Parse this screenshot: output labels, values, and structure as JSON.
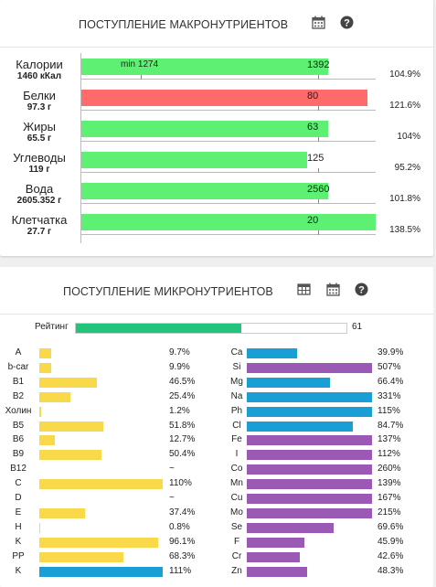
{
  "macro": {
    "title": "ПОСТУПЛЕНИЕ МАКРОНУТРИЕНТОВ",
    "icons": [
      "calendar-icon",
      "help-icon"
    ],
    "min_label": "min 1274",
    "rows": [
      {
        "label": "Калории",
        "value": "1460 кКал",
        "num": "1392",
        "pct": "104.9%",
        "fill": 0.839,
        "color": "#5ef072"
      },
      {
        "label": "Белки",
        "value": "97.3 г",
        "num": "80",
        "pct": "121.6%",
        "fill": 0.973,
        "color": "#ff6b6b"
      },
      {
        "label": "Жиры",
        "value": "65.5 г",
        "num": "63",
        "pct": "104%",
        "fill": 0.839,
        "color": "#5ef072"
      },
      {
        "label": "Углеводы",
        "value": "119 г",
        "num": "125",
        "pct": "95.2%",
        "fill": 0.767,
        "color": "#5ef072"
      },
      {
        "label": "Вода",
        "value": "2605.352 г",
        "num": "2560",
        "pct": "101.8%",
        "fill": 0.839,
        "color": "#5ef072"
      },
      {
        "label": "Клетчатка",
        "value": "27.7 г",
        "num": "20",
        "pct": "138.5%",
        "fill": 1.0,
        "color": "#5ef072"
      }
    ]
  },
  "micro": {
    "title": "ПОСТУПЛЕНИЕ МИКРОНУТРИЕНТОВ",
    "icons": [
      "table-icon",
      "calendar-icon",
      "help-icon"
    ],
    "rating_label": "Рейтинг",
    "rating_value": "61",
    "rating_fill": 0.61,
    "colors": {
      "yellow": "#f9d949",
      "blue": "#1a9ed6",
      "purple": "#9b59b6",
      "green": "#22c47b"
    },
    "left": [
      {
        "label": "A",
        "pct": "9.7%",
        "fill": 0.097,
        "color": "yellow"
      },
      {
        "label": "b-car",
        "pct": "9.9%",
        "fill": 0.099,
        "color": "yellow"
      },
      {
        "label": "B1",
        "pct": "46.5%",
        "fill": 0.465,
        "color": "yellow"
      },
      {
        "label": "B2",
        "pct": "25.4%",
        "fill": 0.254,
        "color": "yellow"
      },
      {
        "label": "Холин",
        "pct": "1.2%",
        "fill": 0.012,
        "color": "yellow"
      },
      {
        "label": "B5",
        "pct": "51.8%",
        "fill": 0.518,
        "color": "yellow"
      },
      {
        "label": "B6",
        "pct": "12.7%",
        "fill": 0.127,
        "color": "yellow"
      },
      {
        "label": "B9",
        "pct": "50.4%",
        "fill": 0.504,
        "color": "yellow"
      },
      {
        "label": "B12",
        "pct": "~",
        "fill": 0,
        "color": "yellow"
      },
      {
        "label": "C",
        "pct": "110%",
        "fill": 1.0,
        "color": "yellow"
      },
      {
        "label": "D",
        "pct": "~",
        "fill": 0,
        "color": "yellow"
      },
      {
        "label": "E",
        "pct": "37.4%",
        "fill": 0.374,
        "color": "yellow"
      },
      {
        "label": "H",
        "pct": "0.8%",
        "fill": 0.008,
        "color": "yellow"
      },
      {
        "label": "K",
        "pct": "96.1%",
        "fill": 0.961,
        "color": "yellow"
      },
      {
        "label": "PP",
        "pct": "68.3%",
        "fill": 0.683,
        "color": "yellow"
      },
      {
        "label": "K",
        "pct": "111%",
        "fill": 1.0,
        "color": "blue"
      }
    ],
    "right": [
      {
        "label": "Ca",
        "pct": "39.9%",
        "fill": 0.399,
        "color": "blue"
      },
      {
        "label": "Si",
        "pct": "507%",
        "fill": 1.0,
        "color": "purple"
      },
      {
        "label": "Mg",
        "pct": "66.4%",
        "fill": 0.664,
        "color": "blue"
      },
      {
        "label": "Na",
        "pct": "331%",
        "fill": 1.0,
        "color": "blue"
      },
      {
        "label": "Ph",
        "pct": "115%",
        "fill": 1.0,
        "color": "blue"
      },
      {
        "label": "Cl",
        "pct": "84.7%",
        "fill": 0.847,
        "color": "blue"
      },
      {
        "label": "Fe",
        "pct": "137%",
        "fill": 1.0,
        "color": "purple"
      },
      {
        "label": "I",
        "pct": "112%",
        "fill": 1.0,
        "color": "purple"
      },
      {
        "label": "Co",
        "pct": "260%",
        "fill": 1.0,
        "color": "purple"
      },
      {
        "label": "Mn",
        "pct": "139%",
        "fill": 1.0,
        "color": "purple"
      },
      {
        "label": "Cu",
        "pct": "167%",
        "fill": 1.0,
        "color": "purple"
      },
      {
        "label": "Mo",
        "pct": "215%",
        "fill": 1.0,
        "color": "purple"
      },
      {
        "label": "Se",
        "pct": "69.6%",
        "fill": 0.696,
        "color": "purple"
      },
      {
        "label": "F",
        "pct": "45.9%",
        "fill": 0.459,
        "color": "purple"
      },
      {
        "label": "Cr",
        "pct": "42.6%",
        "fill": 0.426,
        "color": "purple"
      },
      {
        "label": "Zn",
        "pct": "48.3%",
        "fill": 0.483,
        "color": "purple"
      }
    ]
  }
}
